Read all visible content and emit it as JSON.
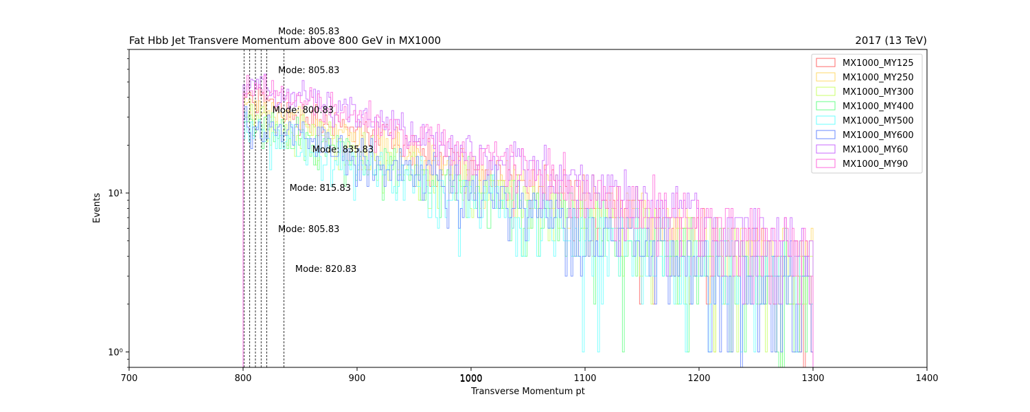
{
  "chart_data": {
    "type": "line",
    "title": "Fat Hbb Jet Transvere Momentum above 800 GeV in MX1000",
    "title_right": "2017 (13 TeV)",
    "xlabel": "Transverse Momentum pt",
    "ylabel": "Events",
    "xlim": [
      700,
      1400
    ],
    "ylim": [
      0.8,
      80
    ],
    "yscale": "log",
    "grid": false,
    "legend_position": "top-right",
    "xticks": [
      700,
      800,
      900,
      1000,
      1100,
      1200,
      1300,
      1400
    ],
    "xtick_labels": [
      "700",
      "800",
      "900",
      "1000",
      "1100",
      "1200",
      "1300",
      "1400"
    ],
    "extra_xtick_label": {
      "value": 1000,
      "label": "1000"
    },
    "yticks": [
      1,
      10
    ],
    "ytick_labels": [
      "10⁰",
      "10¹"
    ],
    "histogram": {
      "x_start": 800,
      "x_end": 1300,
      "bin_width": 1.67
    },
    "series": [
      {
        "name": "MX1000_MY125",
        "color": "#ff6a6a",
        "peak": 40,
        "mode": 805.83
      },
      {
        "name": "MX1000_MY250",
        "color": "#ffd96a",
        "peak": 36,
        "mode": 805.83
      },
      {
        "name": "MX1000_MY300",
        "color": "#c8ff6a",
        "peak": 30,
        "mode": 800.83
      },
      {
        "name": "MX1000_MY400",
        "color": "#6aff8a",
        "peak": 28,
        "mode": 835.83
      },
      {
        "name": "MX1000_MY500",
        "color": "#6affff",
        "peak": 25,
        "mode": 815.83
      },
      {
        "name": "MX1000_MY600",
        "color": "#6a8aff",
        "peak": 28,
        "mode": 805.83
      },
      {
        "name": "MX1000_MY60",
        "color": "#c86aff",
        "peak": 52,
        "mode": 820.83
      },
      {
        "name": "MX1000_MY90",
        "color": "#ff6adc",
        "peak": 50,
        "mode": 805.83
      }
    ],
    "mode_lines": [
      800.83,
      805.83,
      810.83,
      815.83,
      820.83,
      835.83
    ],
    "annotations": [
      {
        "text": "Mode: 805.83",
        "x": 805.83,
        "y": 85
      },
      {
        "text": "Mode: 805.83",
        "x": 805.83,
        "y": 55
      },
      {
        "text": "Mode: 800.83",
        "x": 800.83,
        "y": 31
      },
      {
        "text": "Mode: 835.83",
        "x": 835.83,
        "y": 17.5
      },
      {
        "text": "Mode: 815.83",
        "x": 815.83,
        "y": 10
      },
      {
        "text": "Mode: 805.83",
        "x": 805.83,
        "y": 5.5
      },
      {
        "text": "Mode: 820.83",
        "x": 820.83,
        "y": 3.1
      }
    ]
  }
}
